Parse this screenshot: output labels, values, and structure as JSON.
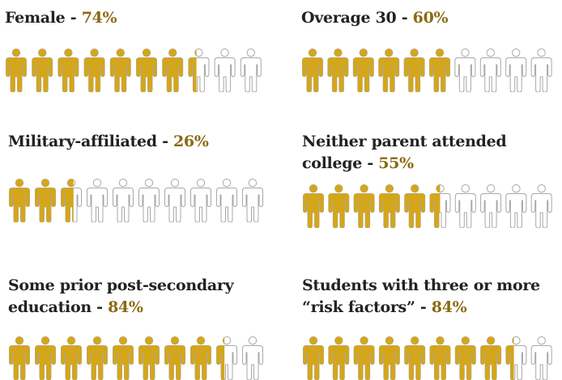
{
  "chart_data": [
    {
      "type": "pictograph",
      "label": "Female",
      "value": 74,
      "value_text": "74%",
      "icons_total": 10,
      "icons_filled": 7.4
    },
    {
      "type": "pictograph",
      "label": "Overage 30",
      "value": 60,
      "value_text": "60%",
      "icons_total": 10,
      "icons_filled": 6.0
    },
    {
      "type": "pictograph",
      "label": "Military-affiliated",
      "value": 26,
      "value_text": "26%",
      "icons_total": 10,
      "icons_filled": 2.6
    },
    {
      "type": "pictograph",
      "label": [
        "Neither parent attended",
        "college"
      ],
      "value": 55,
      "value_text": "55%",
      "icons_total": 10,
      "icons_filled": 5.5
    },
    {
      "type": "pictograph",
      "label": [
        "Some prior post-secondary",
        "education"
      ],
      "value": 84,
      "value_text": "84%",
      "icons_total": 10,
      "icons_filled": 8.4
    },
    {
      "type": "pictograph",
      "label": [
        "Students with three or more",
        "“risk factors”"
      ],
      "value": 84,
      "value_text": "84%",
      "icons_total": 10,
      "icons_filled": 8.4
    }
  ],
  "separator": " - ",
  "colors": {
    "filled": "#d4a61b",
    "empty_stroke": "#a8a8a8",
    "percent_text": "#8a6a12",
    "label_text": "#222222"
  }
}
